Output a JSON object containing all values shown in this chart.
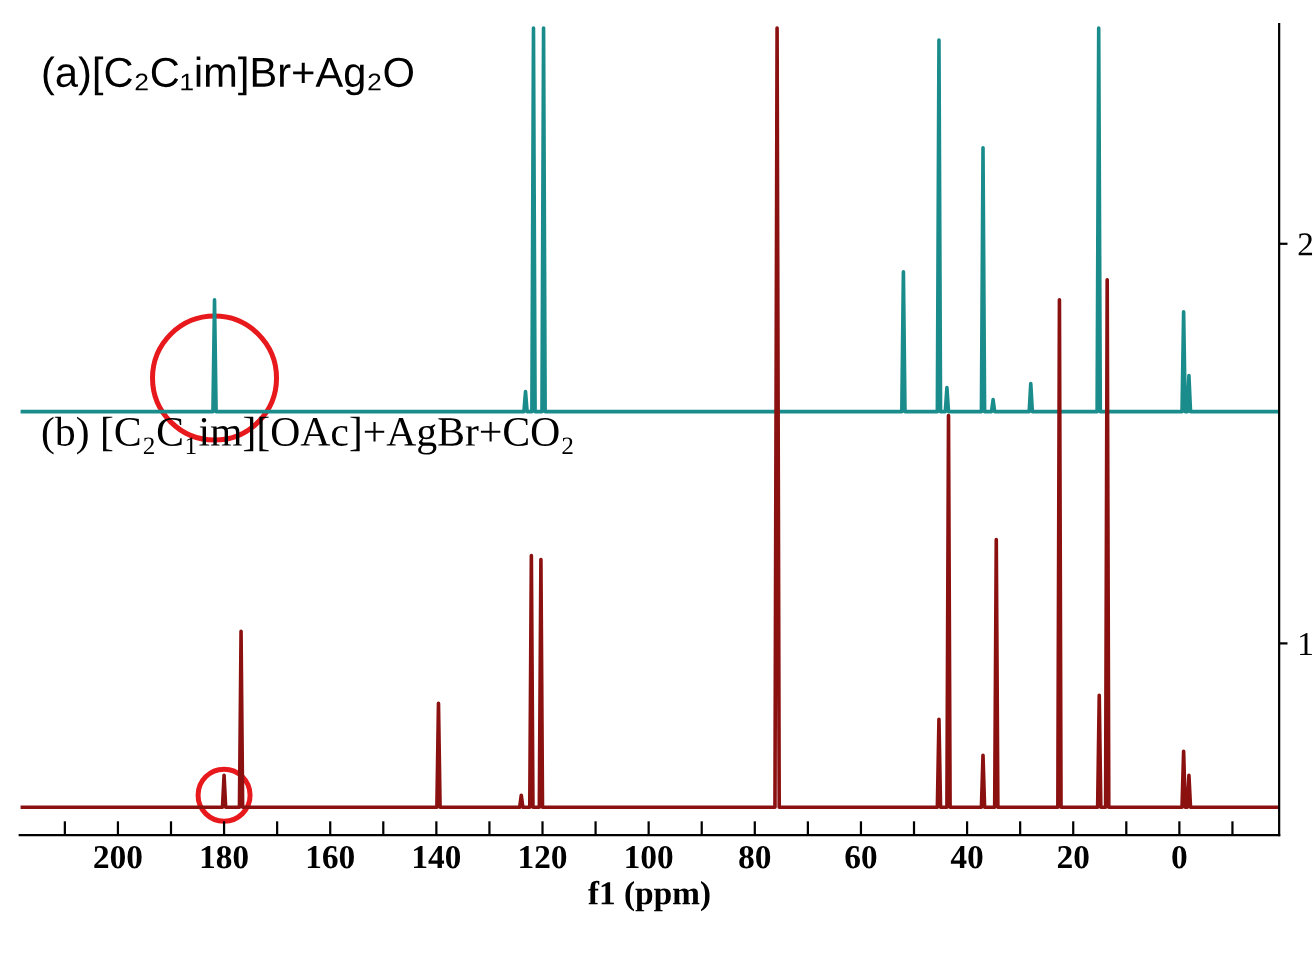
{
  "chart_data": {
    "type": "line",
    "xlabel": "f1 (ppm)",
    "xlim": [
      218.5,
      -18.8
    ],
    "ylim": [
      0.52,
      2.55
    ],
    "xticks": [
      {
        "value": 210,
        "label": null
      },
      200,
      {
        "value": 190,
        "label": null
      },
      180,
      {
        "value": 170,
        "label": null
      },
      160,
      {
        "value": 150,
        "label": null
      },
      140,
      {
        "value": 130,
        "label": null
      },
      120,
      {
        "value": 110,
        "label": null
      },
      100,
      {
        "value": 90,
        "label": null
      },
      80,
      {
        "value": 70,
        "label": null
      },
      60,
      {
        "value": 50,
        "label": null
      },
      40,
      {
        "value": 30,
        "label": null
      },
      20,
      {
        "value": 10,
        "label": null
      },
      0,
      {
        "value": -10,
        "label": null
      }
    ],
    "yticks": [
      1,
      2
    ],
    "annotations": [
      "(a)[C₂C₁im]Br+Ag₂O",
      "(b) [C₂C₁im][OAc]+AgBr+CO₂"
    ],
    "grid": false,
    "legend": false,
    "marker": "none",
    "line_style": "solid",
    "series": [
      {
        "color": "#1b8c8c",
        "x": [
          218,
          182.1,
          181.8,
          181.5,
          123.5,
          123.2,
          122.9,
          122.0,
          121.7,
          121.4,
          120.1,
          119.8,
          119.5,
          52.3,
          52.0,
          51.7,
          45.6,
          45.3,
          45.0,
          44.1,
          43.8,
          43.5,
          37.3,
          37.0,
          36.7,
          35.4,
          35.1,
          34.8,
          28.3,
          28.0,
          27.7,
          15.5,
          15.2,
          14.9,
          -0.5,
          -0.8,
          -1.1,
          -1.5,
          -1.8,
          -2.1,
          -18.5
        ],
        "values": [
          1.58,
          1.58,
          1.86,
          1.58,
          1.58,
          1.63,
          1.58,
          1.58,
          2.54,
          1.58,
          1.58,
          2.54,
          1.58,
          1.58,
          1.93,
          1.58,
          1.58,
          2.51,
          1.58,
          1.58,
          1.64,
          1.58,
          1.58,
          2.24,
          1.58,
          1.58,
          1.61,
          1.58,
          1.58,
          1.65,
          1.58,
          1.58,
          2.54,
          1.58,
          1.58,
          1.83,
          1.58,
          1.58,
          1.67,
          1.58,
          1.58
        ]
      },
      {
        "color": "#8b1010",
        "x": [
          218,
          180.3,
          180.0,
          179.7,
          177.1,
          176.8,
          176.5,
          139.9,
          139.6,
          139.3,
          124.3,
          124.0,
          123.7,
          122.4,
          122.1,
          121.8,
          120.6,
          120.3,
          120.0,
          76.2,
          75.8,
          75.4,
          45.6,
          45.3,
          45.0,
          43.8,
          43.5,
          43.2,
          37.3,
          37.0,
          36.7,
          34.8,
          34.5,
          34.2,
          22.9,
          22.6,
          22.3,
          15.4,
          15.1,
          14.8,
          13.9,
          13.6,
          13.3,
          -0.5,
          -0.8,
          -1.1,
          -1.5,
          -1.8,
          -2.1,
          -18.5
        ],
        "values": [
          0.59,
          0.59,
          0.67,
          0.59,
          0.59,
          1.03,
          0.59,
          0.59,
          0.85,
          0.59,
          0.59,
          0.62,
          0.59,
          0.59,
          1.22,
          0.59,
          0.59,
          1.21,
          0.59,
          0.59,
          2.54,
          0.59,
          0.59,
          0.81,
          0.59,
          0.59,
          1.57,
          0.59,
          0.59,
          0.72,
          0.59,
          0.59,
          1.26,
          0.59,
          0.59,
          1.86,
          0.59,
          0.59,
          0.87,
          0.59,
          0.59,
          1.91,
          0.59,
          0.59,
          0.73,
          0.59,
          0.59,
          0.67,
          0.59,
          0.59
        ]
      }
    ]
  }
}
